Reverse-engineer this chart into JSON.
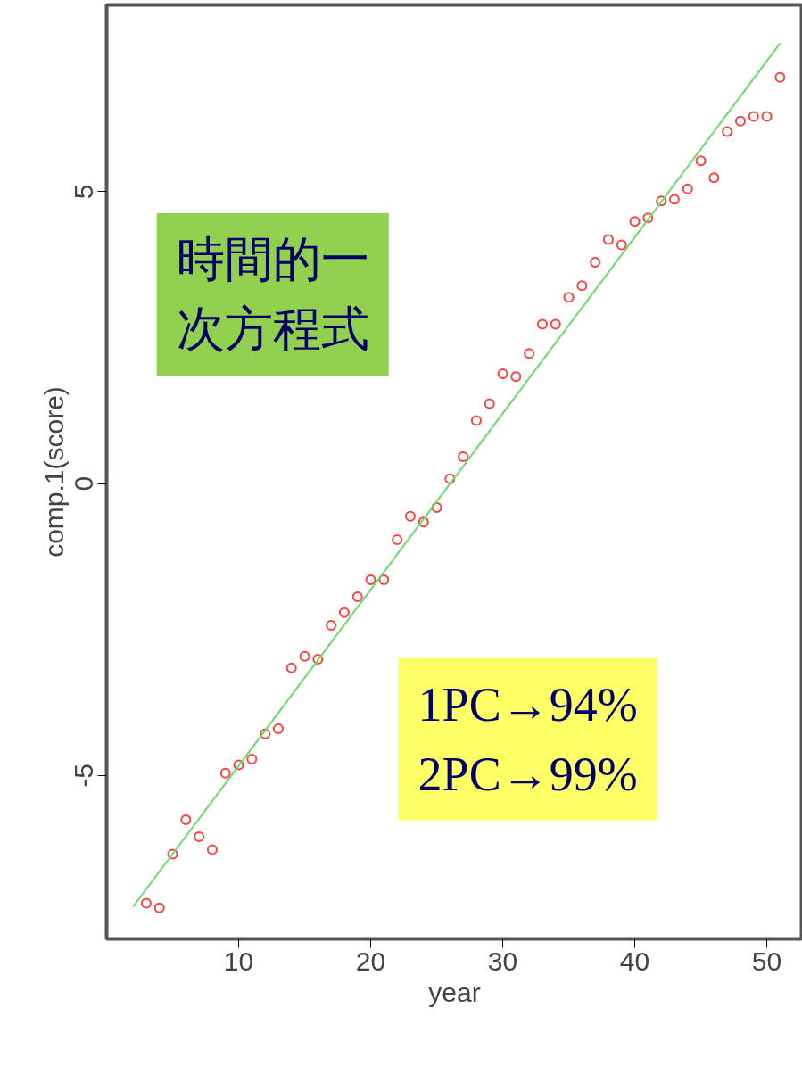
{
  "chart_data": {
    "type": "scatter",
    "xlabel": "year",
    "ylabel": "comp.1(score)",
    "xlim": [
      0,
      52.7
    ],
    "ylim": [
      -7.8,
      8.2
    ],
    "xticks": [
      10,
      20,
      30,
      40,
      50
    ],
    "yticks": [
      -5,
      0,
      5
    ],
    "grid": false,
    "annotations": [
      "時間的一次方程式",
      "1PC→94%\n2PC→99%"
    ],
    "series": [
      {
        "marker": "circle",
        "color": "#ff4040",
        "x": [
          3,
          4,
          5,
          6,
          7,
          8,
          9,
          10,
          11,
          12,
          13,
          14,
          15,
          16,
          17,
          18,
          19,
          20,
          21,
          22,
          23,
          24,
          25,
          26,
          27,
          28,
          29,
          30,
          31,
          32,
          33,
          34,
          35,
          36,
          37,
          38,
          39,
          40,
          41,
          42,
          43,
          44,
          45,
          46,
          47,
          48,
          49,
          50,
          51
        ],
        "values": [
          -7.19,
          -7.27,
          -6.35,
          -5.76,
          -6.05,
          -6.27,
          -4.96,
          -4.82,
          -4.72,
          -4.29,
          -4.2,
          -3.16,
          -2.96,
          -3.01,
          -2.43,
          -2.21,
          -1.94,
          -1.65,
          -1.65,
          -0.96,
          -0.56,
          -0.66,
          -0.41,
          0.08,
          0.46,
          1.08,
          1.37,
          1.88,
          1.83,
          2.23,
          2.73,
          2.73,
          3.19,
          3.39,
          3.79,
          4.18,
          4.09,
          4.49,
          4.55,
          4.84,
          4.87,
          5.05,
          5.53,
          5.24,
          6.03,
          6.21,
          6.29,
          6.29,
          6.96
        ]
      },
      {
        "type": "line",
        "marker": "none",
        "color": "#66dd66",
        "x": [
          2,
          51
        ],
        "values": [
          -7.25,
          7.54
        ]
      }
    ]
  }
}
